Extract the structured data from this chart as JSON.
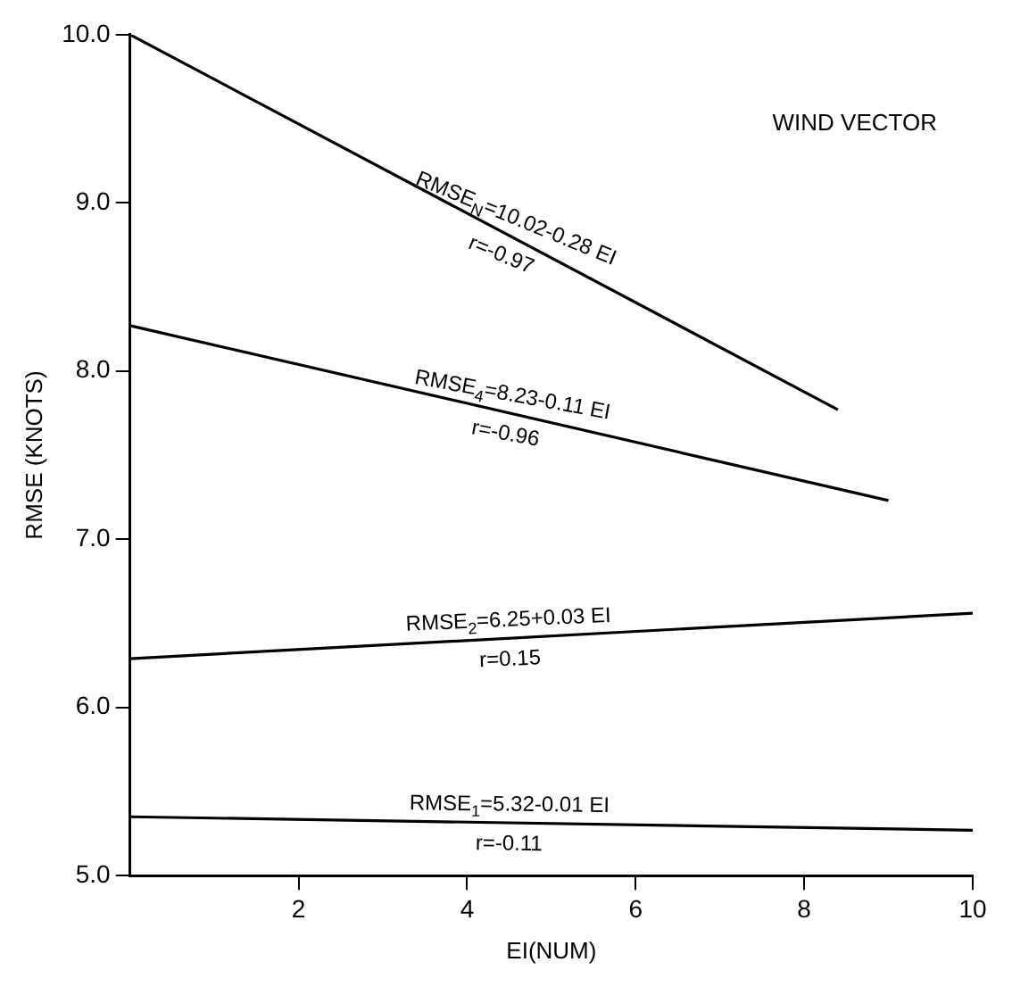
{
  "chart_data": {
    "type": "line",
    "title": "WIND VECTOR",
    "xlabel": "EI(NUM)",
    "ylabel": "RMSE (KNOTS)",
    "series": [
      {
        "color": "#000000",
        "x": [
          0,
          8.4
        ],
        "values": [
          10.0,
          7.77
        ]
      },
      {
        "color": "#000000",
        "x": [
          0,
          9.0
        ],
        "values": [
          8.27,
          7.23
        ]
      },
      {
        "color": "#000000",
        "x": [
          0,
          10
        ],
        "values": [
          6.29,
          6.56
        ]
      },
      {
        "color": "#000000",
        "x": [
          0,
          10
        ],
        "values": [
          5.35,
          5.27
        ]
      }
    ],
    "xlim": [
      0,
      10
    ],
    "xticks": [
      2,
      4,
      6,
      8,
      10
    ],
    "ylim": [
      5,
      10
    ],
    "yticks": [
      {
        "value": 5,
        "label": "5.0"
      },
      {
        "value": 6,
        "label": "6.0"
      },
      {
        "value": 7,
        "label": "7.0"
      },
      {
        "value": 8,
        "label": "8.0"
      },
      {
        "value": 9,
        "label": "9.0"
      },
      {
        "value": 10,
        "label": "10.0"
      }
    ],
    "grid": false,
    "legend": false,
    "marker": "none",
    "line_style": "solid",
    "annotations": [
      "RMSE$_{N}$=10.02-0.28 EI",
      "r=-0.97",
      "RMSE$_{4}$=8.23-0.11 EI",
      "r=-0.96",
      "RMSE$_{2}$=6.25+0.03 EI",
      "r=0.15",
      "RMSE$_{1}$=5.32-0.01 EI",
      "r=-0.11"
    ]
  }
}
